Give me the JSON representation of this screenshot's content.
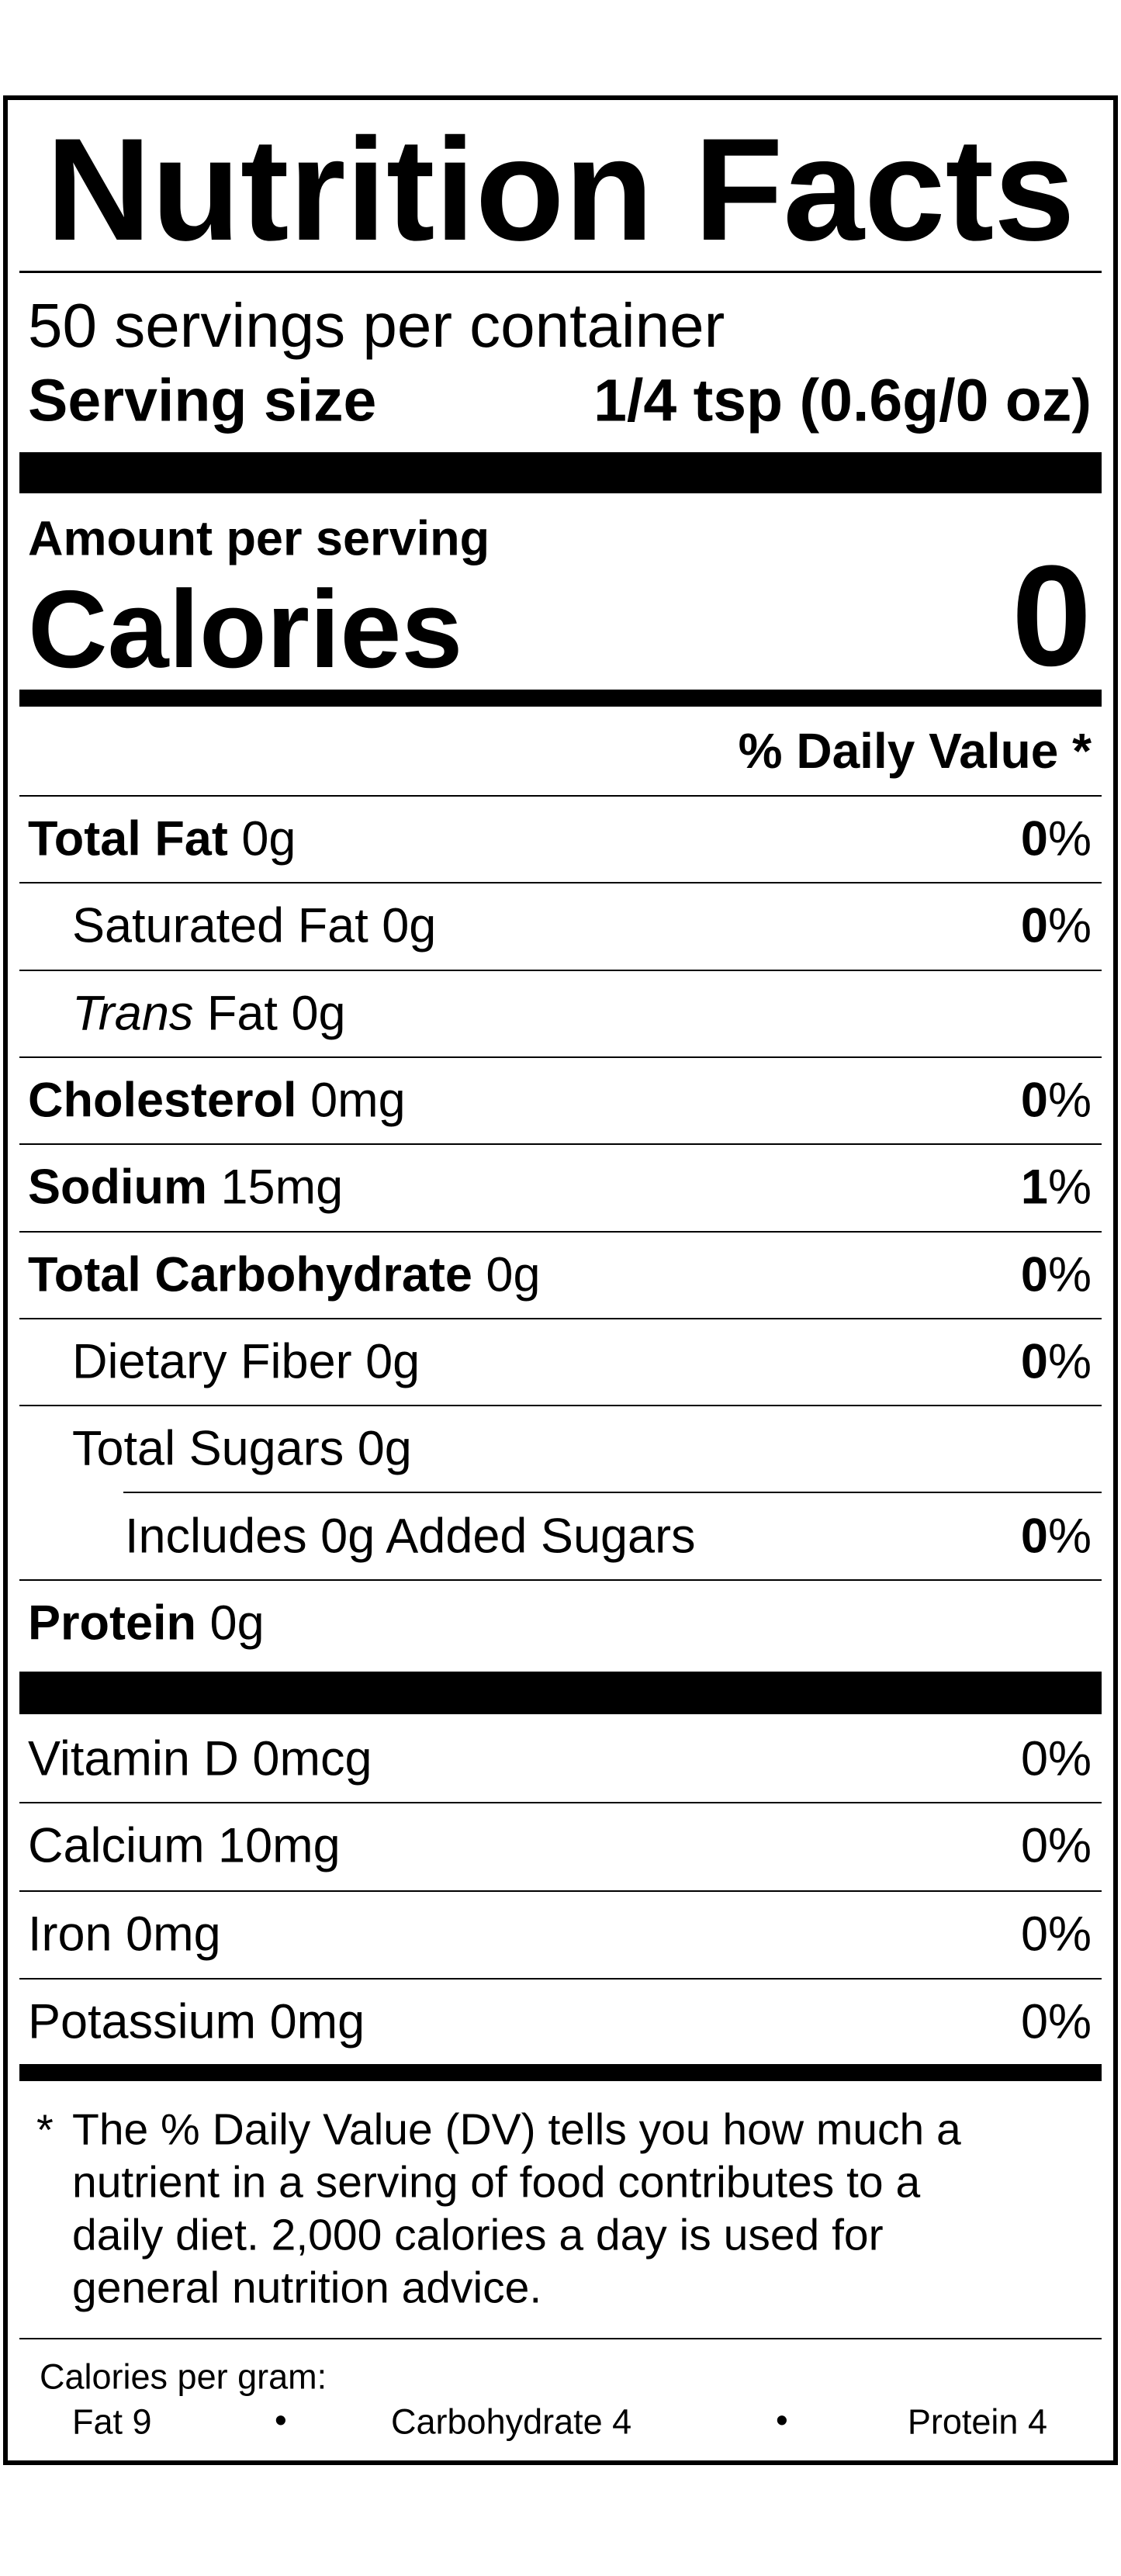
{
  "header": {
    "title": "Nutrition Facts",
    "servings": "50 servings per container",
    "serving_size_label": "Serving size",
    "serving_size_value": "1/4 tsp (0.6g/0 oz)"
  },
  "calories": {
    "amount_label": "Amount per serving",
    "label": "Calories",
    "value": "0"
  },
  "daily_value_header": "% Daily Value *",
  "nutrients": [
    {
      "name": "Total Fat",
      "amount": "0g",
      "dv": {
        "number": "0",
        "unit": "%"
      }
    },
    {
      "name": "Saturated Fat",
      "amount": "0g",
      "dv": {
        "number": "0",
        "unit": "%"
      }
    },
    {
      "name_italic": "Trans",
      "name": "Fat",
      "amount": "0g"
    },
    {
      "name": "Cholesterol",
      "amount": "0mg",
      "dv": {
        "number": "0",
        "unit": "%"
      }
    },
    {
      "name": "Sodium",
      "amount": "15mg",
      "dv": {
        "number": "1",
        "unit": "%"
      }
    },
    {
      "name": "Total Carbohydrate",
      "amount": "0g",
      "dv": {
        "number": "0",
        "unit": "%"
      }
    },
    {
      "name": "Dietary Fiber",
      "amount": "0g",
      "dv": {
        "number": "0",
        "unit": "%"
      }
    },
    {
      "name": "Total Sugars",
      "amount": "0g"
    },
    {
      "name": "Includes 0g Added Sugars",
      "dv": {
        "number": "0",
        "unit": "%"
      }
    },
    {
      "name": "Protein",
      "amount": "0g"
    }
  ],
  "vitamins": [
    {
      "name": "Vitamin D 0mcg",
      "dv": "0%"
    },
    {
      "name": "Calcium 10mg",
      "dv": "0%"
    },
    {
      "name": "Iron 0mg",
      "dv": "0%"
    },
    {
      "name": "Potassium 0mg",
      "dv": "0%"
    }
  ],
  "footnote": {
    "marker": "*",
    "lines": [
      "The % Daily Value (DV) tells you how much a",
      "nutrient in a serving of food contributes to a",
      "daily diet. 2,000 calories a day is used for",
      "general nutrition advice."
    ]
  },
  "calories_per_gram": {
    "label": "Calories per gram:",
    "items": [
      "Fat 9",
      "Carbohydrate 4",
      "Protein 4"
    ],
    "separator": "•"
  }
}
